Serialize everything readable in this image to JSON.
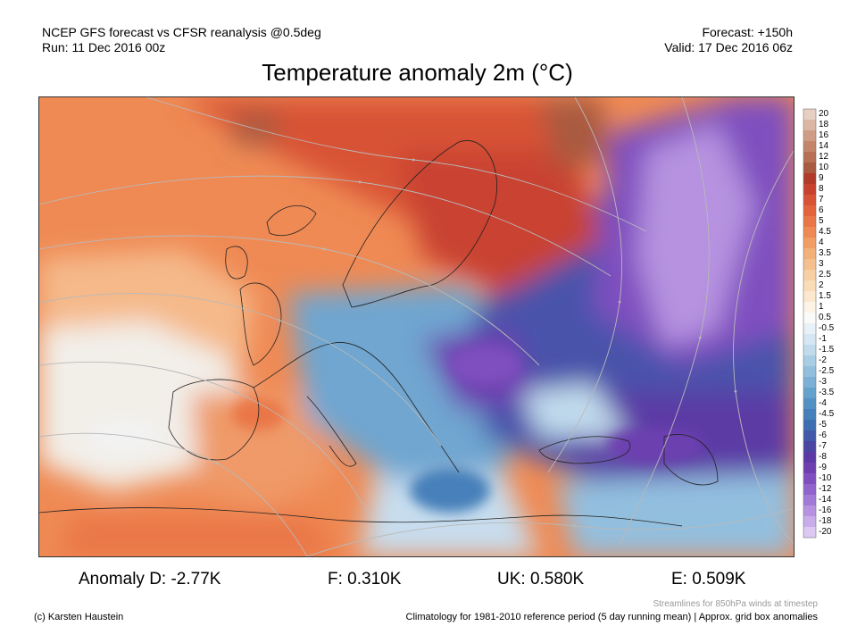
{
  "header": {
    "line1_left": "NCEP GFS forecast vs CFSR reanalysis @0.5deg",
    "line2_left": "Run: 11 Dec 2016 00z",
    "line1_right": "Forecast: +150h",
    "line2_right": "Valid: 17 Dec 2016 06z"
  },
  "title": "Temperature anomaly 2m (°C)",
  "colorbar": {
    "labels": [
      "20",
      "18",
      "16",
      "14",
      "12",
      "10",
      "9",
      "8",
      "7",
      "6",
      "5",
      "4.5",
      "4",
      "3.5",
      "3",
      "2.5",
      "2",
      "1.5",
      "1",
      "0.5",
      "-0.5",
      "-1",
      "-1.5",
      "-2",
      "-2.5",
      "-3",
      "-3.5",
      "-4",
      "-4.5",
      "-5",
      "-6",
      "-7",
      "-8",
      "-9",
      "-10",
      "-12",
      "-14",
      "-16",
      "-18",
      "-20"
    ],
    "colors": [
      "#e8cfc4",
      "#dcb6a4",
      "#cf9d86",
      "#c3866b",
      "#b76f55",
      "#a95a40",
      "#b23a2a",
      "#c94230",
      "#d85236",
      "#e3633d",
      "#ea7647",
      "#ef8a54",
      "#f29d64",
      "#f3b078",
      "#f5c08e",
      "#f7cfa3",
      "#f9dcb8",
      "#fbe8cf",
      "#fdf3e6",
      "#fafaf8",
      "#e9f1f8",
      "#d6e7f3",
      "#c1dbed",
      "#aacde6",
      "#93bfdf",
      "#7cb0d6",
      "#65a1cd",
      "#5391c4",
      "#4680ba",
      "#3d6eb1",
      "#4258a8",
      "#4b45a3",
      "#5b3aa5",
      "#6d3fb0",
      "#7f4fbf",
      "#9064cc",
      "#a27ad7",
      "#b692e0",
      "#c9acea",
      "#ddc8f3"
    ]
  },
  "map": {
    "colors": {
      "warm_strong": "#c94230",
      "warm": "#ea7647",
      "warm_light": "#f7cfa3",
      "neutral": "#f2f2f2",
      "cool_light": "#c1dbed",
      "cool": "#6fa6d0",
      "cold": "#4258a8",
      "very_cold": "#7f4fbf",
      "extreme_cold": "#b692e0",
      "hot_peak": "#a95a40"
    }
  },
  "stats": {
    "d": "Anomaly D: -2.77K",
    "f": "F: 0.310K",
    "uk": "UK: 0.580K",
    "e": "E: 0.509K"
  },
  "footer": {
    "credit": "(c) Karsten Haustein",
    "streamlines": "Streamlines for 850hPa winds at timestep",
    "climatology": "Climatology for 1981-2010 reference period (5 day running mean) | Approx. grid box anomalies"
  }
}
